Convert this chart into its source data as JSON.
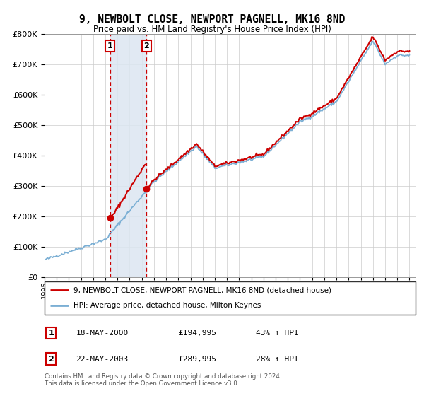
{
  "title": "9, NEWBOLT CLOSE, NEWPORT PAGNELL, MK16 8ND",
  "subtitle": "Price paid vs. HM Land Registry's House Price Index (HPI)",
  "legend_line1": "9, NEWBOLT CLOSE, NEWPORT PAGNELL, MK16 8ND (detached house)",
  "legend_line2": "HPI: Average price, detached house, Milton Keynes",
  "transaction1_date": "18-MAY-2000",
  "transaction1_price": "£194,995",
  "transaction1_hpi": "43% ↑ HPI",
  "transaction2_date": "22-MAY-2003",
  "transaction2_price": "£289,995",
  "transaction2_hpi": "28% ↑ HPI",
  "copyright_text": "Contains HM Land Registry data © Crown copyright and database right 2024.\nThis data is licensed under the Open Government Licence v3.0.",
  "hpi_color": "#7bafd4",
  "price_color": "#cc0000",
  "shade_color": "#dce6f1",
  "transaction1_x": 2000.38,
  "transaction2_x": 2003.39,
  "transaction1_y": 194995,
  "transaction2_y": 289995,
  "ylim": [
    0,
    800000
  ],
  "xlim_min": 1995,
  "xlim_max": 2025.5,
  "background_color": "#ffffff",
  "grid_color": "#cccccc"
}
